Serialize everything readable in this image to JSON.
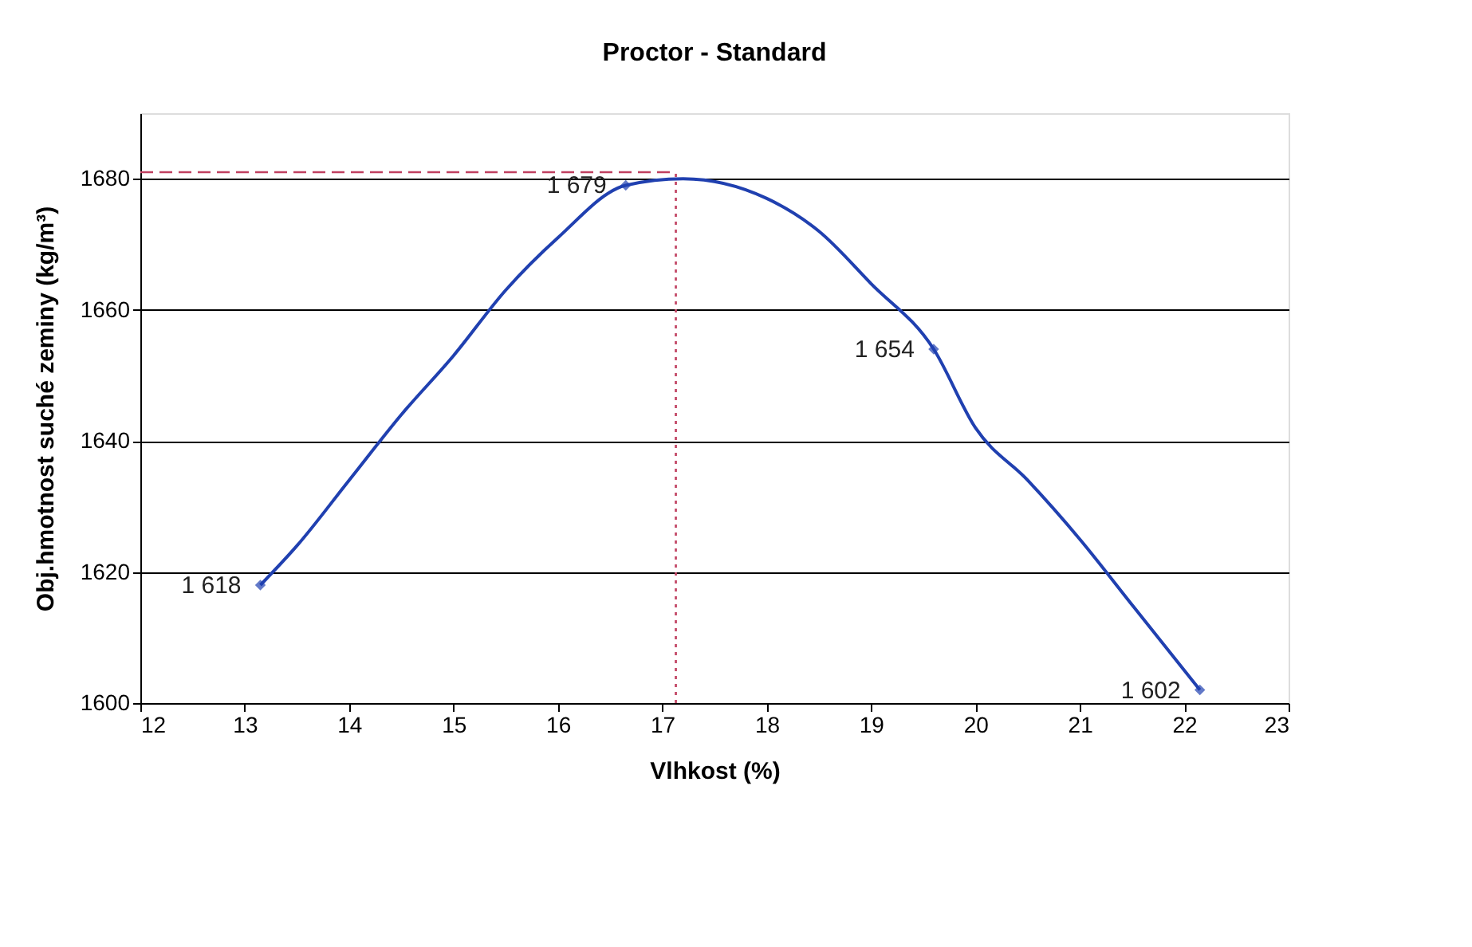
{
  "chart_data": {
    "type": "scatter",
    "title": "Proctor - Standard",
    "xlabel": "Vlhkost (%)",
    "ylabel": "Obj.hmotnost suché zeminy (kg/m³)",
    "xlim": [
      12,
      23
    ],
    "xticks": [
      12,
      13,
      14,
      15,
      16,
      17,
      18,
      19,
      20,
      21,
      22,
      23
    ],
    "ylim": [
      1600,
      1690
    ],
    "yticks": [
      1600,
      1620,
      1640,
      1660,
      1680
    ],
    "grid": "y",
    "series": [
      {
        "type": "line",
        "color": "#2040b0",
        "line_style": "solid",
        "marker": "none",
        "x": [
          13.15,
          13.5,
          14,
          14.5,
          15,
          15.5,
          16,
          16.65,
          17.2,
          18,
          18.5,
          19,
          19.6,
          20,
          20.5,
          21,
          21.5,
          22.15
        ],
        "values": [
          1618,
          1624,
          1634,
          1644,
          1653,
          1663,
          1671,
          1679,
          1680,
          1677,
          1672,
          1664,
          1654,
          1642,
          1634,
          1625,
          1615,
          1602
        ]
      },
      {
        "type": "line",
        "color": "#c04060",
        "line_style": "dashed",
        "marker": "none",
        "x": [
          12,
          17.13
        ],
        "values": [
          1681,
          1681
        ]
      },
      {
        "type": "line",
        "color": "#c04060",
        "line_style": "dotted",
        "marker": "none",
        "x": [
          17.13,
          17.13
        ],
        "values": [
          1600,
          1681
        ]
      },
      {
        "color": "#2040b0",
        "marker": "diamond",
        "x": [
          13.15,
          16.65,
          19.6,
          22.15
        ],
        "values": [
          1618,
          1679,
          1654,
          1602
        ],
        "value_labels": [
          "1 618",
          "1 679",
          "1 654",
          "1 602"
        ]
      }
    ]
  }
}
